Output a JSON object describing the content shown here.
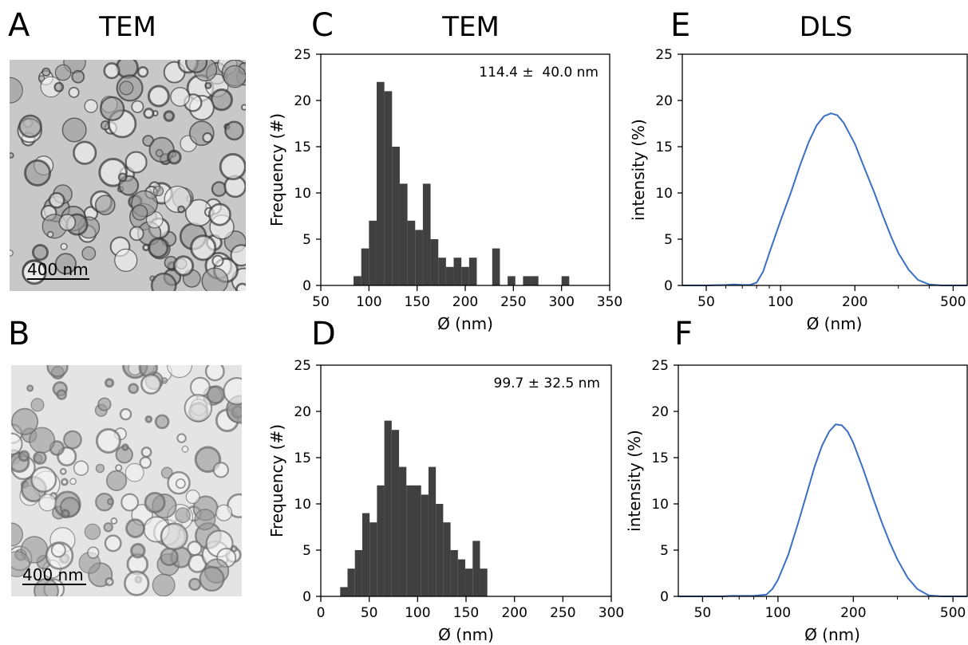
{
  "images": [
    {
      "panel": "A",
      "title": "TEM",
      "scale_bar": "400 nm"
    },
    {
      "panel": "B",
      "scale_bar": "400 nm"
    }
  ],
  "chart_data": [
    {
      "panel": "C",
      "title": "TEM",
      "type": "histogram",
      "bins": [
        84,
        92,
        100,
        108,
        116,
        124,
        132,
        140,
        148,
        156,
        164,
        172,
        180,
        188,
        196,
        204,
        212,
        220,
        228,
        236,
        244,
        252,
        260,
        268,
        276,
        284,
        292,
        300,
        308
      ],
      "values": [
        1,
        4,
        7,
        22,
        21,
        15,
        11,
        7,
        6,
        11,
        5,
        3,
        2,
        3,
        2,
        3,
        0,
        0,
        4,
        0,
        1,
        0,
        1,
        1,
        0,
        0,
        0,
        1
      ],
      "color": "#404040",
      "xlim": [
        50,
        350
      ],
      "xticks": [
        50,
        100,
        150,
        200,
        250,
        300,
        350
      ],
      "ylim": [
        0,
        25
      ],
      "yticks": [
        0,
        5,
        10,
        15,
        20,
        25
      ],
      "xlabel": "Ø (nm)",
      "ylabel": "Frequency (#)",
      "annotation": "114.4 ±  40.0 nm"
    },
    {
      "panel": "D",
      "type": "histogram",
      "bins": [
        20,
        27.6,
        35.2,
        42.8,
        50.4,
        58,
        65.6,
        73.2,
        80.8,
        88.4,
        96,
        103.6,
        111.2,
        118.8,
        126.4,
        134,
        141.6,
        149.2,
        156.8,
        164.4,
        172
      ],
      "values": [
        1,
        3,
        5,
        9,
        8,
        12,
        19,
        18,
        14,
        12,
        12,
        11,
        14,
        10,
        8,
        5,
        4,
        3,
        6,
        3
      ],
      "color": "#404040",
      "xlim": [
        0,
        300
      ],
      "xticks": [
        0,
        50,
        100,
        150,
        200,
        250,
        300
      ],
      "ylim": [
        0,
        25
      ],
      "yticks": [
        0,
        5,
        10,
        15,
        20,
        25
      ],
      "xlabel": "Ø (nm)",
      "ylabel": "Frequency (#)",
      "annotation": "99.7 ± 32.5 nm"
    },
    {
      "panel": "E",
      "title": "DLS",
      "type": "line",
      "xscale": "log",
      "x": [
        40,
        50,
        60,
        65,
        70,
        75,
        80,
        85,
        90,
        100,
        110,
        120,
        130,
        140,
        150,
        160,
        170,
        180,
        200,
        220,
        240,
        260,
        280,
        300,
        330,
        360,
        400,
        450,
        500,
        570
      ],
      "values": [
        0,
        0,
        0.05,
        0.1,
        0.05,
        0.05,
        0.3,
        1.5,
        3.5,
        7,
        10,
        13,
        15.5,
        17.3,
        18.3,
        18.6,
        18.4,
        17.6,
        15.3,
        12.5,
        10,
        7.5,
        5.3,
        3.5,
        1.7,
        0.6,
        0.1,
        0,
        0,
        0
      ],
      "color": "#3a6fc4",
      "xlim": [
        40,
        570
      ],
      "xticks": [
        50,
        100,
        200,
        500
      ],
      "xminorticks": [
        60,
        70,
        80,
        90,
        300,
        400
      ],
      "ylim": [
        0,
        25
      ],
      "yticks": [
        0,
        5,
        10,
        15,
        20,
        25
      ],
      "xlabel": "Ø (nm)",
      "ylabel": "intensity (%)"
    },
    {
      "panel": "F",
      "type": "line",
      "xscale": "log",
      "x": [
        40,
        50,
        60,
        65,
        70,
        80,
        90,
        95,
        100,
        110,
        120,
        130,
        140,
        150,
        160,
        170,
        180,
        190,
        200,
        220,
        240,
        260,
        280,
        300,
        330,
        360,
        400,
        450,
        500,
        570
      ],
      "values": [
        0,
        0,
        0,
        0.05,
        0.05,
        0.05,
        0.2,
        0.8,
        1.8,
        4.5,
        7.8,
        11,
        14,
        16.3,
        17.8,
        18.6,
        18.5,
        17.8,
        16.6,
        13.6,
        10.6,
        8,
        5.8,
        4,
        2,
        0.8,
        0.1,
        0,
        0,
        0
      ],
      "color": "#3a6fc4",
      "xlim": [
        40,
        570
      ],
      "xticks": [
        50,
        100,
        200,
        500
      ],
      "xminorticks": [
        60,
        70,
        80,
        90,
        300,
        400
      ],
      "ylim": [
        0,
        25
      ],
      "yticks": [
        0,
        5,
        10,
        15,
        20,
        25
      ],
      "xlabel": "Ø (nm)",
      "ylabel": "intensity (%)"
    }
  ]
}
